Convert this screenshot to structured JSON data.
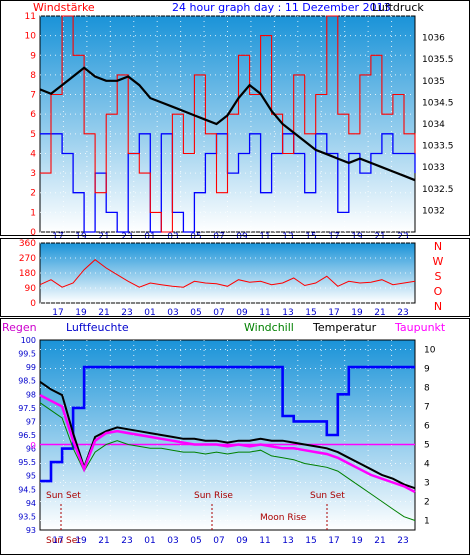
{
  "chart_data": [
    {
      "type": "line",
      "title": "24 hour graph day : 11 Dezember 2013",
      "left_label": "Windstärke",
      "right_label": "Luftdruck",
      "x_tick_labels": [
        "17",
        "19",
        "21",
        "23",
        "01",
        "03",
        "05",
        "07",
        "09",
        "11",
        "13",
        "15",
        "17",
        "19",
        "21",
        "23"
      ],
      "y_left": {
        "range": [
          0,
          11
        ],
        "ticks": [
          "0",
          "1",
          "2",
          "3",
          "4",
          "5",
          "6",
          "7",
          "8",
          "9",
          "10",
          "11"
        ]
      },
      "y_right": {
        "range": [
          1031.5,
          1036.5
        ],
        "ticks": [
          "1032",
          "1032.5",
          "1033",
          "1033.5",
          "1034",
          "1034.5",
          "1035",
          "1035.5",
          "1036"
        ]
      },
      "series": [
        {
          "name": "Luftdruck",
          "color": "#000000",
          "values": [
            1034.8,
            1034.7,
            1034.9,
            1035.1,
            1035.3,
            1035.1,
            1035.0,
            1035.0,
            1035.1,
            1034.9,
            1034.6,
            1034.5,
            1034.4,
            1034.3,
            1034.2,
            1034.1,
            1034.0,
            1034.2,
            1034.6,
            1034.9,
            1034.7,
            1034.3,
            1034.0,
            1033.8,
            1033.6,
            1033.4,
            1033.3,
            1033.2,
            1033.1,
            1033.2,
            1033.1,
            1033.0,
            1032.9,
            1032.8,
            1032.7
          ]
        },
        {
          "name": "",
          "color": "#ff0000",
          "values": [
            3,
            7,
            11,
            9,
            5,
            2,
            6,
            8,
            4,
            3,
            1,
            0,
            6,
            4,
            8,
            5,
            2,
            6,
            9,
            7,
            10,
            6,
            4,
            8,
            5,
            7,
            11,
            6,
            5,
            8,
            9,
            6,
            7,
            5,
            4
          ]
        },
        {
          "name": "",
          "color": "#0000ff",
          "values": [
            5,
            5,
            4,
            2,
            0,
            3,
            1,
            0,
            4,
            5,
            0,
            5,
            1,
            0,
            2,
            4,
            5,
            3,
            4,
            5,
            2,
            4,
            5,
            4,
            2,
            5,
            4,
            1,
            4,
            3,
            4,
            5,
            4,
            4,
            3
          ]
        }
      ]
    },
    {
      "type": "line",
      "title": "",
      "direction_labels": [
        "N",
        "W",
        "S",
        "O",
        "N"
      ],
      "x_tick_labels": [
        "17",
        "19",
        "21",
        "23",
        "01",
        "03",
        "05",
        "07",
        "09",
        "11",
        "13",
        "15",
        "17",
        "19",
        "21",
        "23"
      ],
      "y_left": {
        "range": [
          0,
          360
        ],
        "ticks": [
          "0",
          "90",
          "180",
          "270",
          "360"
        ]
      },
      "series": [
        {
          "name": "",
          "color": "#ff0000",
          "values": [
            110,
            140,
            95,
            120,
            200,
            260,
            210,
            170,
            130,
            95,
            120,
            110,
            100,
            95,
            130,
            120,
            115,
            100,
            140,
            125,
            130,
            110,
            120,
            150,
            105,
            120,
            160,
            100,
            130,
            120,
            125,
            140,
            110,
            120,
            130
          ]
        }
      ]
    },
    {
      "type": "line",
      "title": "",
      "legend": [
        "Regen",
        "Luftfeuchte",
        "Windchill",
        "Temperatur",
        "Taupunkt"
      ],
      "legend_colors": [
        "#cc00cc",
        "#0000cc",
        "#008000",
        "#000000",
        "#ff00ff"
      ],
      "x_tick_labels": [
        "17",
        "19",
        "21",
        "23",
        "01",
        "03",
        "05",
        "07",
        "09",
        "11",
        "13",
        "15",
        "17",
        "19",
        "21",
        "23"
      ],
      "y_left": {
        "range": [
          93,
          100
        ],
        "ticks": [
          "93",
          "93.5",
          "94",
          "94.5",
          "95",
          "95.5",
          "96",
          "96.5",
          "97",
          "97.5",
          "98",
          "98.5",
          "99",
          "99.5",
          "100"
        ]
      },
      "y_right": {
        "range": [
          0.5,
          10.5
        ],
        "ticks": [
          "1",
          "2",
          "3",
          "4",
          "5",
          "6",
          "7",
          "8",
          "9",
          "10"
        ]
      },
      "regen_value_label": "0",
      "annotations": [
        "Sun Set",
        "Sun Rise",
        "Sun Set",
        "Moon Rise",
        "Sun Set"
      ],
      "series": [
        {
          "name": "Luftfeuchte",
          "color": "#0000ff",
          "values": [
            94.8,
            95.5,
            96.0,
            97.5,
            99.0,
            99.0,
            99.0,
            99.0,
            99.0,
            99.0,
            99.0,
            99.0,
            99.0,
            99.0,
            99.0,
            99.0,
            99.0,
            99.0,
            99.0,
            99.0,
            99.0,
            99.0,
            97.2,
            97.0,
            97.0,
            97.0,
            96.5,
            98.0,
            99.0,
            99.0,
            99.0,
            99.0,
            99.0,
            99.0,
            99.0
          ]
        },
        {
          "name": "Temperatur",
          "color": "#000000",
          "values": [
            8.3,
            7.9,
            7.6,
            5.6,
            3.8,
            5.4,
            5.7,
            5.9,
            5.8,
            5.7,
            5.6,
            5.5,
            5.4,
            5.3,
            5.3,
            5.2,
            5.2,
            5.1,
            5.2,
            5.2,
            5.3,
            5.2,
            5.2,
            5.1,
            5.0,
            4.9,
            4.8,
            4.6,
            4.3,
            4.0,
            3.7,
            3.4,
            3.2,
            2.9,
            2.7
          ]
        },
        {
          "name": "Taupunkt",
          "color": "#ff00ff",
          "values": [
            7.6,
            7.3,
            7.0,
            5.2,
            3.7,
            5.2,
            5.6,
            5.7,
            5.6,
            5.5,
            5.4,
            5.3,
            5.2,
            5.1,
            5.0,
            5.0,
            5.0,
            4.9,
            5.0,
            4.9,
            5.0,
            4.9,
            4.8,
            4.8,
            4.7,
            4.6,
            4.5,
            4.3,
            4.0,
            3.7,
            3.4,
            3.2,
            3.0,
            2.8,
            2.5
          ]
        },
        {
          "name": "Windchill",
          "color": "#008000",
          "values": [
            7.2,
            6.8,
            6.4,
            4.8,
            3.6,
            4.6,
            5.0,
            5.2,
            5.0,
            4.9,
            4.8,
            4.8,
            4.7,
            4.6,
            4.6,
            4.5,
            4.6,
            4.5,
            4.6,
            4.6,
            4.7,
            4.4,
            4.3,
            4.2,
            4.0,
            3.9,
            3.8,
            3.6,
            3.2,
            2.8,
            2.4,
            2.0,
            1.6,
            1.2,
            1.0
          ]
        }
      ]
    }
  ]
}
